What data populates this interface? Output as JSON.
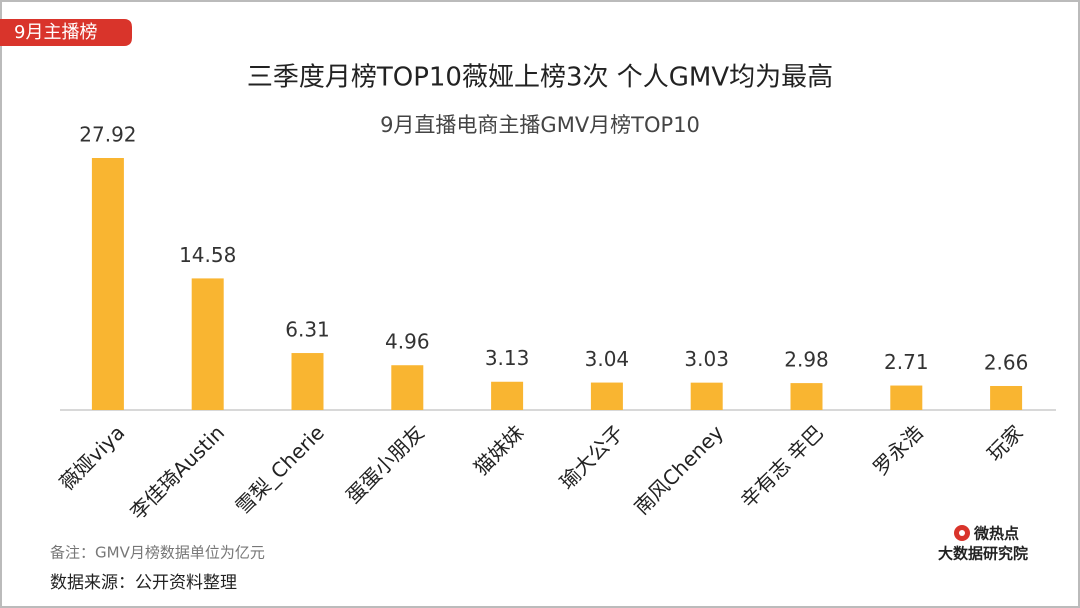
{
  "tag": "9月主播榜",
  "chart_data": {
    "type": "bar",
    "title": "三季度月榜TOP10薇娅上榜3次 个人GMV均为最高",
    "subtitle": "9月直播电商主播GMV月榜TOP10",
    "categories": [
      "薇娅viya",
      "李佳琦Austin",
      "雪梨_Cherie",
      "蛋蛋小朋友",
      "猫妹妹",
      "瑜大公子",
      "南风Cheney",
      "辛有志 辛巴",
      "罗永浩",
      "玩家"
    ],
    "values": [
      27.92,
      14.58,
      6.31,
      4.96,
      3.13,
      3.04,
      3.03,
      2.98,
      2.71,
      2.66
    ],
    "color": "#f9b531"
  },
  "note": "备注：GMV月榜数据单位为亿元",
  "source": "数据来源：公开资料整理",
  "logo": {
    "name": "微热点",
    "org": "大数据研究院"
  }
}
